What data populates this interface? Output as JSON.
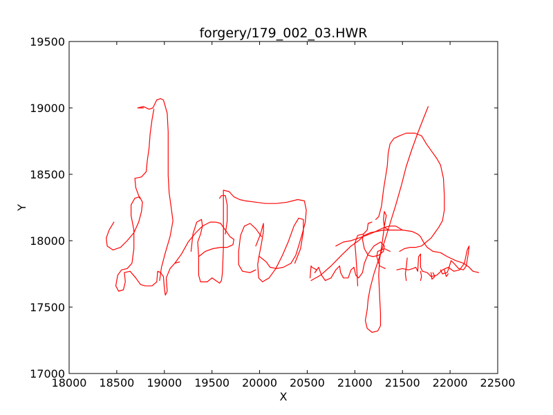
{
  "chart_data": {
    "type": "line",
    "title": "forgery/179_002_03.HWR",
    "xlabel": "X",
    "ylabel": "Y",
    "xlim": [
      18000,
      22500
    ],
    "ylim": [
      17000,
      19500
    ],
    "x_ticks": [
      18000,
      18500,
      19000,
      19500,
      20000,
      20500,
      21000,
      21500,
      22000,
      22500
    ],
    "y_ticks": [
      17000,
      17500,
      18000,
      18500,
      19000,
      19500
    ],
    "grid": false,
    "line_color": "#ff0000",
    "strokes": [
      [
        [
          18470,
          18140
        ],
        [
          18420,
          18080
        ],
        [
          18390,
          18020
        ],
        [
          18400,
          17960
        ],
        [
          18460,
          17930
        ],
        [
          18540,
          17950
        ],
        [
          18610,
          18000
        ],
        [
          18680,
          18060
        ],
        [
          18730,
          18140
        ],
        [
          18760,
          18220
        ],
        [
          18770,
          18290
        ],
        [
          18740,
          18330
        ],
        [
          18690,
          18320
        ],
        [
          18650,
          18270
        ],
        [
          18650,
          18190
        ],
        [
          18680,
          18080
        ],
        [
          18680,
          17940
        ],
        [
          18660,
          17830
        ],
        [
          18610,
          17790
        ],
        [
          18550,
          17780
        ],
        [
          18510,
          17740
        ],
        [
          18490,
          17660
        ],
        [
          18520,
          17620
        ],
        [
          18570,
          17630
        ],
        [
          18590,
          17690
        ],
        [
          18580,
          17760
        ],
        [
          18640,
          17770
        ],
        [
          18700,
          17720
        ],
        [
          18750,
          17670
        ],
        [
          18800,
          17660
        ],
        [
          18870,
          17660
        ],
        [
          18920,
          17690
        ],
        [
          18930,
          17770
        ],
        [
          18960,
          17760
        ],
        [
          18990,
          17730
        ],
        [
          19000,
          17640
        ],
        [
          19010,
          17590
        ],
        [
          19030,
          17620
        ],
        [
          19020,
          17720
        ],
        [
          19060,
          17790
        ],
        [
          19110,
          17830
        ],
        [
          19160,
          17840
        ]
      ],
      [
        [
          18780,
          19000
        ],
        [
          18720,
          19000
        ],
        [
          18780,
          19010
        ],
        [
          18840,
          18990
        ],
        [
          18880,
          19000
        ],
        [
          18920,
          19060
        ],
        [
          18960,
          19070
        ],
        [
          18990,
          19060
        ],
        [
          19030,
          18960
        ],
        [
          19040,
          18820
        ],
        [
          19040,
          18650
        ],
        [
          19040,
          18490
        ],
        [
          19050,
          18360
        ],
        [
          19070,
          18260
        ],
        [
          19090,
          18150
        ],
        [
          19060,
          18030
        ],
        [
          19010,
          17910
        ],
        [
          18970,
          17800
        ],
        [
          18950,
          17700
        ]
      ],
      [
        [
          18890,
          18990
        ],
        [
          18870,
          18910
        ],
        [
          18850,
          18800
        ],
        [
          18840,
          18700
        ],
        [
          18820,
          18600
        ],
        [
          18810,
          18520
        ],
        [
          18760,
          18480
        ],
        [
          18690,
          18470
        ],
        [
          18700,
          18400
        ],
        [
          18740,
          18320
        ]
      ],
      [
        [
          19280,
          17920
        ],
        [
          19300,
          18050
        ],
        [
          19340,
          18140
        ],
        [
          19390,
          18160
        ],
        [
          19400,
          18110
        ],
        [
          19380,
          18050
        ],
        [
          19350,
          17990
        ],
        [
          19360,
          17880
        ],
        [
          19360,
          17740
        ],
        [
          19380,
          17690
        ],
        [
          19450,
          17690
        ],
        [
          19500,
          17720
        ],
        [
          19540,
          17700
        ],
        [
          19580,
          17680
        ],
        [
          19600,
          17700
        ],
        [
          19610,
          17760
        ],
        [
          19620,
          17950
        ],
        [
          19620,
          18130
        ],
        [
          19620,
          18300
        ],
        [
          19620,
          18380
        ],
        [
          19680,
          18370
        ],
        [
          19730,
          18330
        ],
        [
          19790,
          18310
        ],
        [
          19850,
          18300
        ],
        [
          19960,
          18290
        ],
        [
          20060,
          18280
        ],
        [
          20180,
          18280
        ],
        [
          20290,
          18290
        ],
        [
          20400,
          18310
        ],
        [
          20470,
          18300
        ],
        [
          20490,
          18230
        ],
        [
          20480,
          18140
        ],
        [
          20450,
          18060
        ],
        [
          20410,
          17960
        ],
        [
          20380,
          17890
        ],
        [
          20330,
          17830
        ],
        [
          20250,
          17800
        ],
        [
          20180,
          17790
        ],
        [
          20110,
          17800
        ],
        [
          20070,
          17840
        ],
        [
          20000,
          17880
        ]
      ],
      [
        [
          19110,
          17830
        ],
        [
          19180,
          17900
        ],
        [
          19250,
          17990
        ],
        [
          19330,
          18060
        ],
        [
          19400,
          18110
        ],
        [
          19480,
          18140
        ],
        [
          19540,
          18140
        ],
        [
          19590,
          18130
        ],
        [
          19640,
          18080
        ],
        [
          19690,
          18030
        ],
        [
          19730,
          18010
        ],
        [
          19720,
          17970
        ],
        [
          19660,
          17950
        ],
        [
          19590,
          17950
        ],
        [
          19510,
          17940
        ],
        [
          19430,
          17920
        ],
        [
          19360,
          17880
        ]
      ],
      [
        [
          19580,
          18320
        ],
        [
          19600,
          18340
        ],
        [
          19640,
          18340
        ],
        [
          19660,
          18270
        ],
        [
          19660,
          18150
        ],
        [
          19640,
          18050
        ]
      ],
      [
        [
          19960,
          17960
        ],
        [
          20010,
          18050
        ],
        [
          20040,
          18130
        ],
        [
          20040,
          18070
        ],
        [
          20020,
          17980
        ],
        [
          19990,
          17870
        ],
        [
          19980,
          17820
        ],
        [
          19990,
          17720
        ],
        [
          20030,
          17690
        ],
        [
          20100,
          17720
        ],
        [
          20170,
          17790
        ],
        [
          20240,
          17890
        ],
        [
          20300,
          17990
        ],
        [
          20360,
          18110
        ],
        [
          20410,
          18170
        ],
        [
          20460,
          18160
        ],
        [
          20460,
          18070
        ],
        [
          20430,
          17940
        ],
        [
          20370,
          17830
        ]
      ],
      [
        [
          20020,
          18030
        ],
        [
          19960,
          18090
        ],
        [
          19900,
          18130
        ],
        [
          19840,
          18110
        ],
        [
          19800,
          18040
        ],
        [
          19780,
          17920
        ],
        [
          19780,
          17820
        ],
        [
          19820,
          17770
        ],
        [
          19900,
          17760
        ],
        [
          19960,
          17780
        ]
      ],
      [
        [
          20540,
          17700
        ],
        [
          20640,
          17740
        ],
        [
          20750,
          17810
        ],
        [
          20860,
          17890
        ],
        [
          20960,
          17960
        ],
        [
          21040,
          18000
        ],
        [
          21100,
          18040
        ],
        [
          21160,
          18060
        ],
        [
          21230,
          18070
        ],
        [
          21300,
          18080
        ],
        [
          21400,
          18080
        ],
        [
          21500,
          18080
        ],
        [
          21600,
          18070
        ],
        [
          21660,
          18050
        ],
        [
          21690,
          18030
        ],
        [
          21720,
          17990
        ],
        [
          21760,
          17950
        ],
        [
          21820,
          17920
        ],
        [
          21900,
          17910
        ],
        [
          21970,
          17880
        ],
        [
          22060,
          17850
        ],
        [
          22140,
          17830
        ],
        [
          22200,
          17800
        ],
        [
          22240,
          17770
        ],
        [
          22300,
          17760
        ]
      ],
      [
        [
          20580,
          17760
        ],
        [
          20620,
          17800
        ],
        [
          20650,
          17740
        ],
        [
          20690,
          17700
        ],
        [
          20750,
          17720
        ],
        [
          20800,
          17780
        ],
        [
          20840,
          17810
        ],
        [
          20850,
          17760
        ],
        [
          20880,
          17720
        ],
        [
          20930,
          17720
        ],
        [
          20960,
          17780
        ],
        [
          20990,
          17800
        ],
        [
          21010,
          17740
        ],
        [
          21040,
          17720
        ],
        [
          21080,
          17760
        ],
        [
          21100,
          17830
        ],
        [
          21140,
          17900
        ],
        [
          21200,
          17960
        ],
        [
          21270,
          17990
        ],
        [
          21310,
          17960
        ],
        [
          21300,
          17920
        ],
        [
          21250,
          17890
        ],
        [
          21190,
          17880
        ],
        [
          21140,
          17890
        ],
        [
          21100,
          17940
        ],
        [
          21080,
          18010
        ],
        [
          21090,
          18050
        ]
      ],
      [
        [
          20530,
          17720
        ],
        [
          20540,
          17810
        ],
        [
          20550,
          17800
        ],
        [
          20600,
          17780
        ],
        [
          20580,
          17760
        ]
      ],
      [
        [
          20800,
          17960
        ],
        [
          20880,
          17990
        ],
        [
          20960,
          18000
        ],
        [
          21040,
          18020
        ],
        [
          21120,
          18040
        ],
        [
          21190,
          18060
        ],
        [
          21250,
          18080
        ],
        [
          21310,
          18100
        ],
        [
          21360,
          18110
        ],
        [
          21430,
          18110
        ],
        [
          21500,
          18080
        ]
      ],
      [
        [
          21770,
          19010
        ],
        [
          21720,
          18920
        ],
        [
          21660,
          18810
        ],
        [
          21600,
          18690
        ],
        [
          21540,
          18560
        ],
        [
          21490,
          18420
        ],
        [
          21430,
          18270
        ],
        [
          21370,
          18130
        ],
        [
          21310,
          17990
        ],
        [
          21250,
          17860
        ],
        [
          21200,
          17750
        ],
        [
          21160,
          17640
        ],
        [
          21140,
          17560
        ],
        [
          21130,
          17480
        ]
      ],
      [
        [
          21130,
          17480
        ],
        [
          21110,
          17400
        ],
        [
          21130,
          17340
        ],
        [
          21180,
          17310
        ],
        [
          21240,
          17320
        ],
        [
          21270,
          17360
        ],
        [
          21270,
          17450
        ],
        [
          21260,
          17580
        ],
        [
          21250,
          17740
        ],
        [
          21260,
          17860
        ],
        [
          21290,
          18000
        ],
        [
          21310,
          18110
        ],
        [
          21330,
          18190
        ],
        [
          21310,
          18220
        ],
        [
          21300,
          18160
        ],
        [
          21310,
          18100
        ],
        [
          21360,
          18080
        ]
      ],
      [
        [
          21320,
          17790
        ],
        [
          21260,
          17810
        ],
        [
          21230,
          17880
        ],
        [
          21240,
          17920
        ],
        [
          21310,
          17940
        ],
        [
          21370,
          17920
        ]
      ],
      [
        [
          21030,
          17660
        ],
        [
          21020,
          17790
        ],
        [
          21010,
          17900
        ],
        [
          21000,
          17980
        ],
        [
          21030,
          18040
        ],
        [
          21090,
          18050
        ],
        [
          21130,
          18080
        ],
        [
          21140,
          18130
        ],
        [
          21180,
          18140
        ]
      ],
      [
        [
          21220,
          18160
        ],
        [
          21250,
          18180
        ],
        [
          21280,
          18260
        ],
        [
          21300,
          18380
        ],
        [
          21320,
          18470
        ],
        [
          21340,
          18560
        ],
        [
          21350,
          18660
        ],
        [
          21370,
          18730
        ],
        [
          21410,
          18770
        ],
        [
          21470,
          18790
        ],
        [
          21540,
          18810
        ],
        [
          21630,
          18810
        ],
        [
          21700,
          18790
        ],
        [
          21750,
          18730
        ],
        [
          21820,
          18660
        ],
        [
          21860,
          18620
        ],
        [
          21900,
          18570
        ],
        [
          21930,
          18470
        ],
        [
          21940,
          18340
        ],
        [
          21940,
          18230
        ],
        [
          21920,
          18150
        ],
        [
          21880,
          18100
        ],
        [
          21840,
          18060
        ],
        [
          21800,
          18020
        ],
        [
          21750,
          17990
        ],
        [
          21700,
          17960
        ],
        [
          21640,
          17950
        ],
        [
          21580,
          17950
        ],
        [
          21520,
          17940
        ],
        [
          21470,
          17920
        ]
      ],
      [
        [
          21440,
          17780
        ],
        [
          21500,
          17790
        ],
        [
          21560,
          17780
        ],
        [
          21610,
          17790
        ],
        [
          21640,
          17800
        ],
        [
          21660,
          17770
        ],
        [
          21670,
          17880
        ],
        [
          21690,
          17900
        ],
        [
          21690,
          17800
        ],
        [
          21710,
          17770
        ],
        [
          21760,
          17760
        ],
        [
          21800,
          17730
        ],
        [
          21860,
          17740
        ],
        [
          21920,
          17780
        ],
        [
          21980,
          17800
        ],
        [
          22040,
          17770
        ],
        [
          22100,
          17780
        ],
        [
          22150,
          17830
        ],
        [
          22180,
          17930
        ],
        [
          22200,
          17960
        ],
        [
          22190,
          17900
        ],
        [
          22170,
          17810
        ],
        [
          22140,
          17780
        ],
        [
          22090,
          17790
        ],
        [
          22040,
          17830
        ],
        [
          22010,
          17850
        ],
        [
          21990,
          17800
        ],
        [
          21970,
          17760
        ],
        [
          21920,
          17750
        ],
        [
          21900,
          17780
        ]
      ],
      [
        [
          21550,
          17870
        ],
        [
          21540,
          17800
        ],
        [
          21530,
          17750
        ],
        [
          21540,
          17700
        ]
      ],
      [
        [
          21690,
          17770
        ],
        [
          21700,
          17730
        ],
        [
          21690,
          17700
        ]
      ],
      [
        [
          21800,
          17760
        ],
        [
          21810,
          17710
        ],
        [
          21840,
          17730
        ],
        [
          21820,
          17760
        ]
      ],
      [
        [
          21940,
          17780
        ],
        [
          21960,
          17730
        ],
        [
          21980,
          17750
        ]
      ]
    ]
  }
}
